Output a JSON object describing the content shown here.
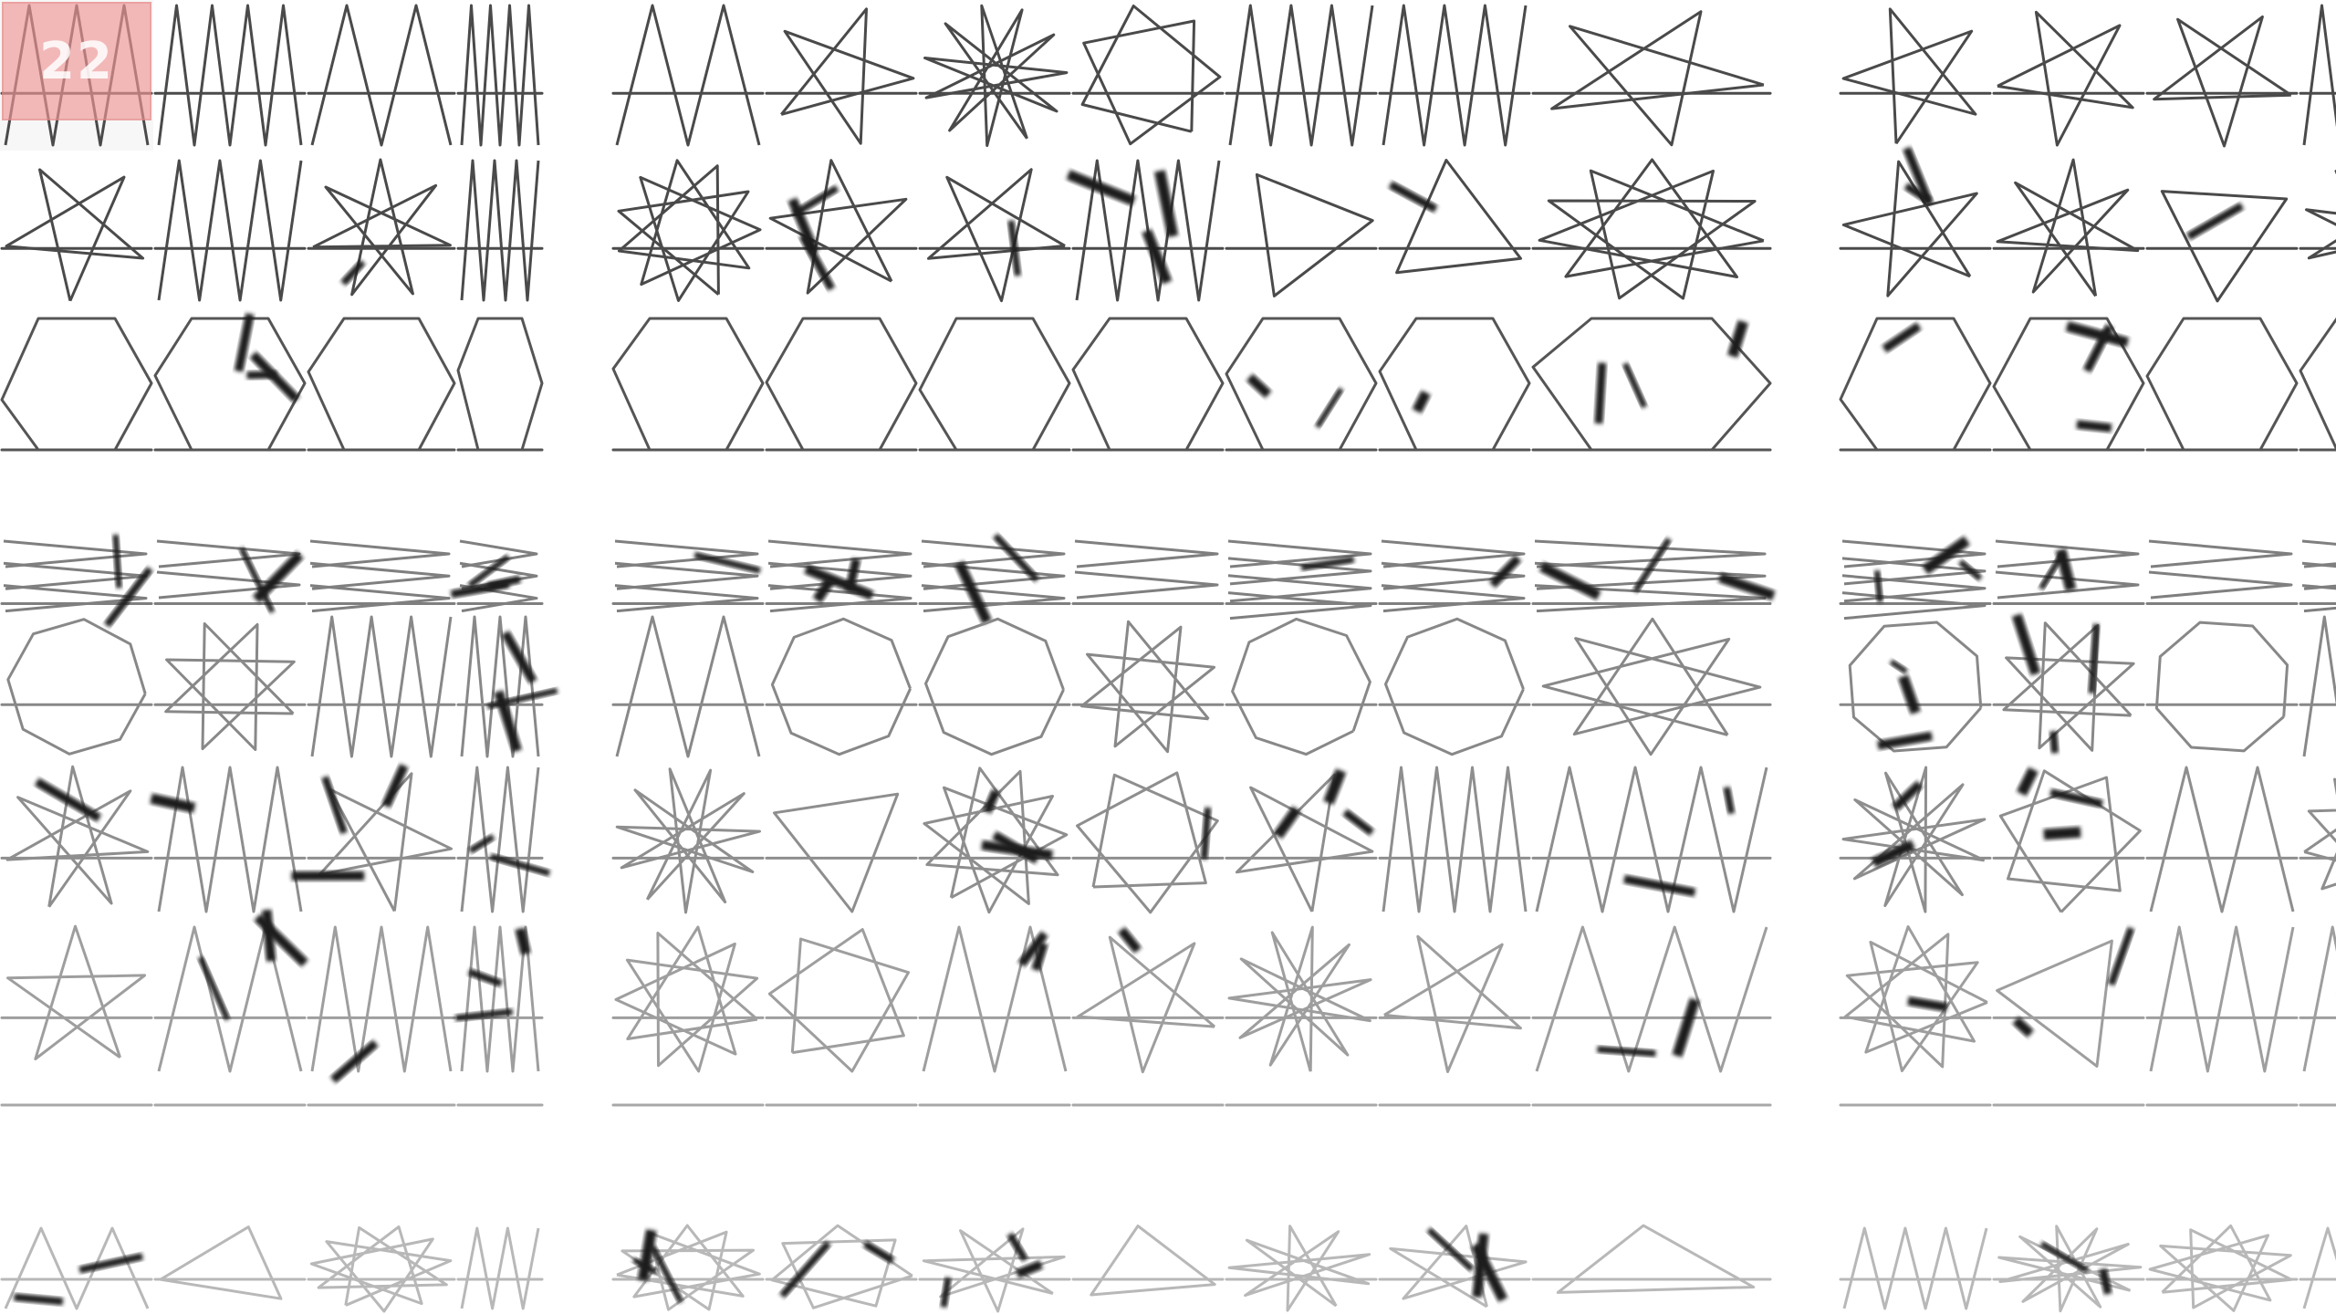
{
  "badge": {
    "text": "22",
    "color": "#f09696"
  },
  "colors": {
    "background": "#ffffff",
    "row_strokes": [
      "#4a4a4a",
      "#4a4a4a",
      "#555555",
      "#7f7f7f",
      "#888888",
      "#8e8e8e",
      "#9e9e9e",
      "#a8a8a8",
      "#b8b8b8"
    ],
    "blob": "#1e1e1e"
  },
  "grid": {
    "row_count": 9,
    "column_count": 16,
    "column_groups": 3,
    "rows": [
      {
        "style": "star-polygons"
      },
      {
        "style": "zigzag-star-polygons"
      },
      {
        "style": "open-polygons"
      },
      {
        "style": "flat-chevrons"
      },
      {
        "style": "octagon-zigzag"
      },
      {
        "style": "polygon-crossing"
      },
      {
        "style": "star-polygons"
      },
      {
        "style": "baseline-only"
      },
      {
        "style": "star-polygons-faded"
      }
    ]
  }
}
